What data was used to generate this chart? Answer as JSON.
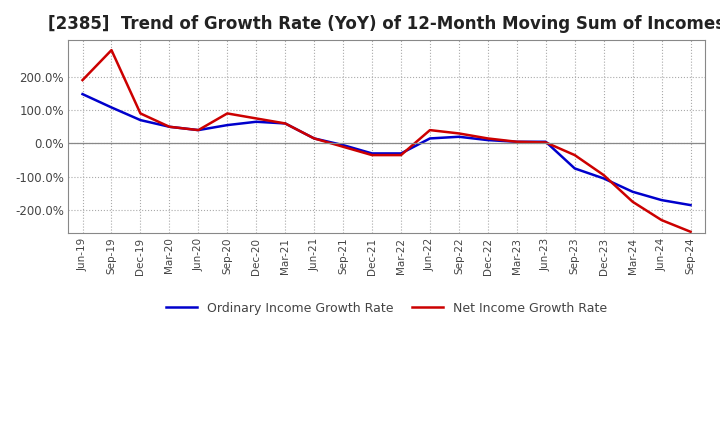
{
  "title": "[2385]  Trend of Growth Rate (YoY) of 12-Month Moving Sum of Incomes",
  "title_fontsize": 12,
  "ylim": [
    -270,
    310
  ],
  "ytick_values": [
    -200,
    -100,
    0,
    100,
    200
  ],
  "ytick_labels": [
    "-200.0%",
    "-100.0%",
    "0.0%",
    "100.0%",
    "200.0%"
  ],
  "background_color": "#ffffff",
  "plot_bg_color": "#ffffff",
  "grid_color": "#aaaaaa",
  "line_blue_color": "#0000cc",
  "line_red_color": "#cc0000",
  "legend_ordinary": "Ordinary Income Growth Rate",
  "legend_net": "Net Income Growth Rate",
  "x_labels": [
    "Jun-19",
    "Sep-19",
    "Dec-19",
    "Mar-20",
    "Jun-20",
    "Sep-20",
    "Dec-20",
    "Mar-21",
    "Jun-21",
    "Sep-21",
    "Dec-21",
    "Mar-22",
    "Jun-22",
    "Sep-22",
    "Dec-22",
    "Mar-23",
    "Jun-23",
    "Sep-23",
    "Dec-23",
    "Mar-24",
    "Jun-24",
    "Sep-24"
  ],
  "ordinary_income_growth": [
    148,
    108,
    70,
    50,
    40,
    55,
    65,
    60,
    15,
    -5,
    -30,
    -30,
    15,
    20,
    10,
    5,
    5,
    -75,
    -105,
    -145,
    -170,
    -185
  ],
  "net_income_growth": [
    190,
    280,
    90,
    50,
    40,
    90,
    75,
    60,
    15,
    -10,
    -35,
    -35,
    40,
    30,
    15,
    5,
    3,
    -35,
    -95,
    -175,
    -230,
    -265
  ]
}
